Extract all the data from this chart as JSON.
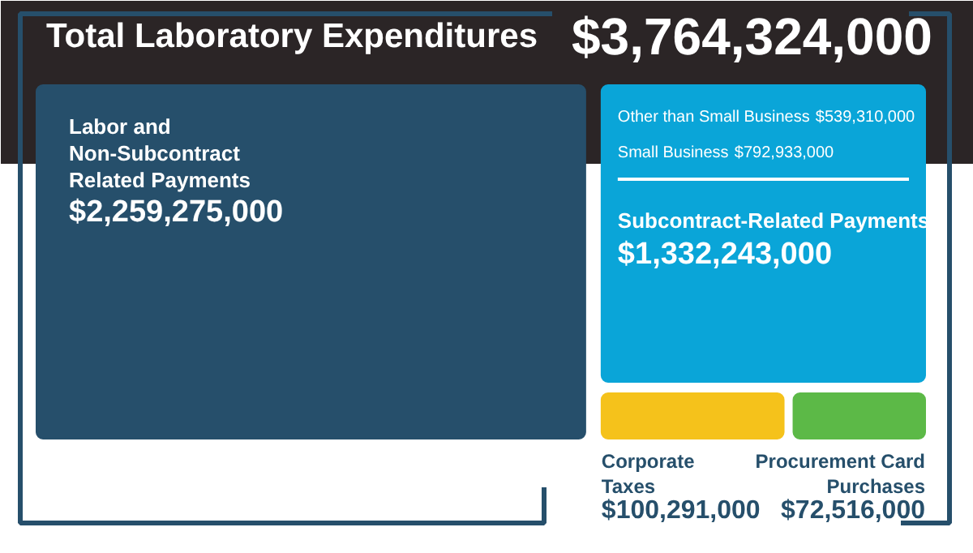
{
  "chart_data": {
    "type": "other",
    "title": "Total Laboratory Expenditures",
    "annotations": [
      "$3,764,324,000"
    ],
    "categories": [
      "Labor and\nNon-Subcontract\nRelated Payments",
      "Subcontract-Related Payments",
      "Other than Small Business",
      "Small Business",
      "Corporate\nTaxes",
      "Procurement Card\nPurchases"
    ],
    "values": [
      2259275000,
      1332243000,
      539310000,
      792933000,
      100291000,
      72516000
    ],
    "value_labels": [
      "$2,259,275,000",
      "$1,332,243,000",
      "$539,310,000",
      "$792,933,000",
      "$100,291,000",
      "$72,516,000"
    ],
    "colors": [
      "#264f6b",
      "#0aa5d8",
      null,
      null,
      "#f5c21b",
      "#5cb947"
    ]
  }
}
